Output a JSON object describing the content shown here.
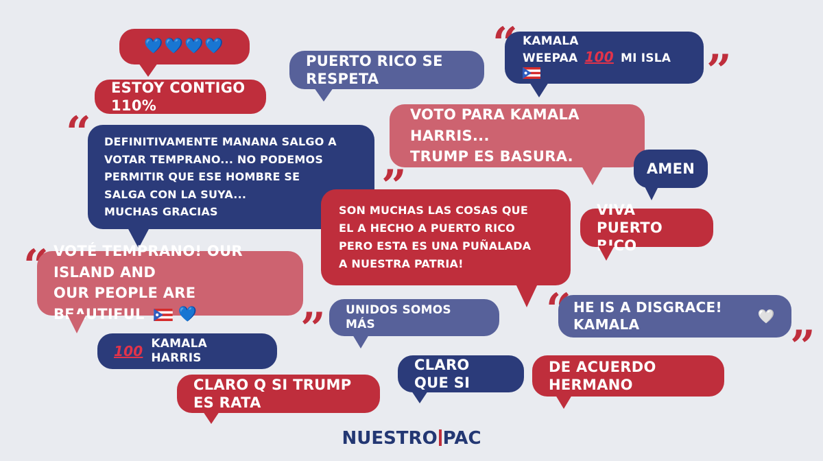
{
  "comments": {
    "hearts": "💙💙💙💙",
    "contigo": "ESTOY CONTIGO 110%",
    "respeta": "PUERTO RICO SE RESPETA",
    "kamala_weepaa_line1": "KAMALA",
    "kamala_weepaa_line2a": "WEEPAA",
    "kamala_weepaa_line2b": "MI ISLA",
    "definitivamente": "DEFINITIVAMENTE MANANA SALGO A\nVOTAR TEMPRANO... NO PODEMOS\nPERMITIR QUE ESE HOMBRE SE\nSALGA CON LA SUYA...\nMUCHAS GRACIAS",
    "voto": "VOTO PARA KAMALA HARRIS...\nTRUMP ES BASURA.",
    "amen": "AMEN",
    "muchas_cosas": "SON MUCHAS LAS COSAS QUE\nEL A HECHO A PUERTO RICO\nPERO ESTA ES UNA PUÑALADA\nA NUESTRA PATRIA!",
    "viva": "VIVA PUERTO RICO",
    "vote_line1": "VOTÉ TEMPRANO! OUR ISLAND AND",
    "vote_line2": "OUR PEOPLE ARE BEAUTIFUL",
    "unidos": "UNIDOS SOMOS MÁS",
    "disgrace": "HE IS A DISGRACE! KAMALA",
    "kamala_harris": "KAMALA HARRIS",
    "claro_q": "CLARO Q SI TRUMP ES RATA",
    "claro_que": "CLARO QUE SI",
    "acuerdo": "DE ACUERDO HERMANO"
  },
  "emoji": {
    "hundred": "100",
    "blue_heart": "💙",
    "white_heart": "🤍"
  },
  "quote_marks": {
    "open": "“",
    "close": "”"
  },
  "logo": {
    "left": "NUESTRO",
    "right": "PAC"
  },
  "colors": {
    "background": "#e9ebf0",
    "red": "#bf2e3c",
    "navy": "#2b3b7a",
    "slate": "#57619a",
    "pink": "#cd6370",
    "logo_text": "#233773"
  }
}
